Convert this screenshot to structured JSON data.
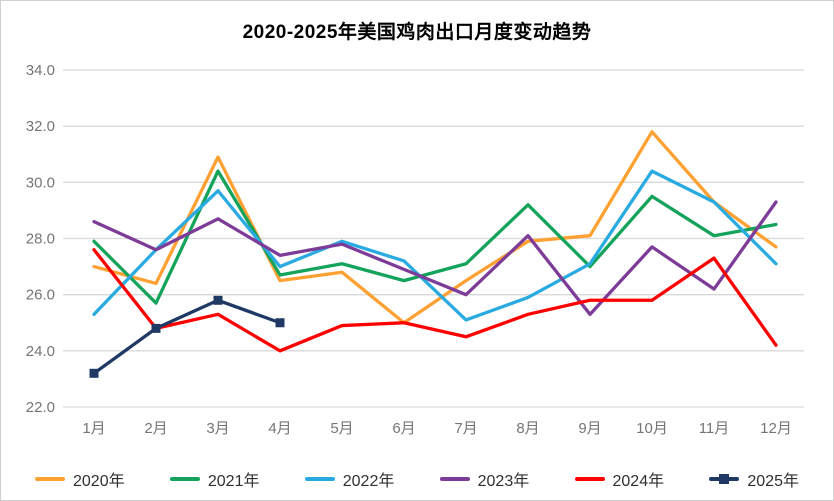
{
  "chart_data": {
    "type": "line",
    "title": "2020-2025年美国鸡肉出口月度变动趋势",
    "categories": [
      "1月",
      "2月",
      "3月",
      "4月",
      "5月",
      "6月",
      "7月",
      "8月",
      "9月",
      "10月",
      "11月",
      "12月"
    ],
    "series": [
      {
        "name": "2020年",
        "color": "#FFA033",
        "values": [
          27.0,
          26.4,
          30.9,
          26.5,
          26.8,
          25.0,
          26.5,
          27.9,
          28.1,
          31.8,
          29.3,
          27.7
        ]
      },
      {
        "name": "2021年",
        "color": "#14A35B",
        "values": [
          27.9,
          25.7,
          30.4,
          26.7,
          27.1,
          26.5,
          27.1,
          29.2,
          27.0,
          29.5,
          28.1,
          28.5
        ]
      },
      {
        "name": "2022年",
        "color": "#29ABE2",
        "values": [
          25.3,
          27.6,
          29.7,
          27.0,
          27.9,
          27.2,
          25.1,
          25.9,
          27.1,
          30.4,
          29.3,
          27.1
        ]
      },
      {
        "name": "2023年",
        "color": "#7D3C98",
        "values": [
          28.6,
          27.6,
          28.7,
          27.4,
          27.8,
          26.9,
          26.0,
          28.1,
          25.3,
          27.7,
          26.2,
          29.3
        ]
      },
      {
        "name": "2024年",
        "color": "#FF0000",
        "values": [
          27.6,
          24.8,
          25.3,
          24.0,
          24.9,
          25.0,
          24.5,
          25.3,
          25.8,
          25.8,
          27.3,
          24.2
        ]
      },
      {
        "name": "2025年",
        "color": "#1F3864",
        "marker": "square",
        "values": [
          23.2,
          24.8,
          25.8,
          25.0
        ]
      }
    ],
    "ylim": [
      22,
      34
    ],
    "ytick_labels": [
      "22.0",
      "24.0",
      "26.0",
      "28.0",
      "30.0",
      "32.0",
      "34.0"
    ],
    "grid": true,
    "legend_position": "bottom",
    "axis_label_color": "#757575",
    "gridline_color": "#D9D9D9"
  }
}
